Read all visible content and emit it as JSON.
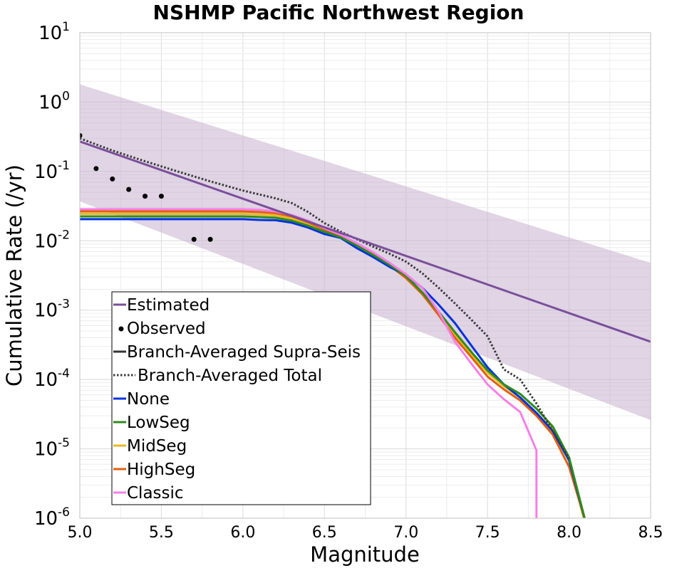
{
  "chart_data": {
    "type": "line",
    "title": "NSHMP Pacific Northwest Region",
    "xlabel": "Magnitude",
    "ylabel": "Cumulative Rate (/yr)",
    "xlim": [
      5.0,
      8.5
    ],
    "ylim": [
      1e-06,
      10
    ],
    "yscale": "log",
    "grid": true,
    "legend_placement": "lower-left",
    "xticks": [
      "5.0",
      "5.5",
      "6.0",
      "6.5",
      "7.0",
      "7.5",
      "8.0",
      "8.5"
    ],
    "yticks": [
      {
        "base": "10",
        "exp": "1",
        "value": 10
      },
      {
        "base": "10",
        "exp": "0",
        "value": 1
      },
      {
        "base": "10",
        "exp": "-1",
        "value": 0.1
      },
      {
        "base": "10",
        "exp": "-2",
        "value": 0.01
      },
      {
        "base": "10",
        "exp": "-3",
        "value": 0.001
      },
      {
        "base": "10",
        "exp": "-4",
        "value": 0.0001
      },
      {
        "base": "10",
        "exp": "-5",
        "value": 1e-05
      },
      {
        "base": "10",
        "exp": "-6",
        "value": 1e-06
      }
    ],
    "band": {
      "color": "#c7b0d0",
      "opacity": 0.55,
      "x": [
        5.0,
        8.5
      ],
      "upper": [
        1.8,
        0.0048
      ],
      "lower": [
        0.037,
        2.6e-05
      ]
    },
    "series": [
      {
        "name": "Estimated",
        "style": "line",
        "color": "#7a4f9a",
        "x": [
          5.0,
          8.5
        ],
        "y": [
          0.27,
          0.00035
        ]
      },
      {
        "name": "Observed",
        "style": "points",
        "color": "#000000",
        "x": [
          5.0,
          5.1,
          5.2,
          5.3,
          5.4,
          5.5,
          5.7,
          5.8
        ],
        "y": [
          0.33,
          0.11,
          0.078,
          0.055,
          0.044,
          0.044,
          0.0105,
          0.0105
        ]
      },
      {
        "name": "Branch-Averaged Supra-Seis",
        "style": "line",
        "color": "#333333",
        "x": [],
        "y": []
      },
      {
        "name": "Branch-Averaged Total",
        "style": "dotted",
        "color": "#3a3a3a",
        "x": [
          5.0,
          5.2,
          5.4,
          5.6,
          5.8,
          6.0,
          6.2,
          6.3,
          6.4,
          6.5,
          6.6,
          6.7,
          6.8,
          6.9,
          7.0,
          7.1,
          7.2,
          7.3,
          7.4,
          7.5,
          7.6,
          7.7,
          7.8,
          7.9,
          8.0
        ],
        "y": [
          0.3,
          0.2,
          0.14,
          0.1,
          0.072,
          0.053,
          0.041,
          0.035,
          0.026,
          0.018,
          0.0135,
          0.0105,
          0.0082,
          0.0065,
          0.005,
          0.0034,
          0.0021,
          0.00125,
          0.00073,
          0.00042,
          0.00014,
          0.0001,
          4.5e-05,
          1.8e-05,
          7.2e-06
        ]
      },
      {
        "name": "None",
        "style": "line",
        "color": "#0033dd",
        "x": [
          5.0,
          5.1,
          5.2,
          5.3,
          5.4,
          5.5,
          5.6,
          5.7,
          5.8,
          5.9,
          6.0,
          6.1,
          6.2,
          6.3,
          6.4,
          6.5,
          6.6,
          6.7,
          6.8,
          6.9,
          7.0,
          7.1,
          7.2,
          7.3,
          7.4,
          7.5,
          7.6,
          7.7,
          7.8,
          7.9,
          8.0,
          8.1
        ],
        "y": [
          0.0205,
          0.0205,
          0.0205,
          0.0205,
          0.0205,
          0.0205,
          0.0205,
          0.0205,
          0.0205,
          0.0205,
          0.0205,
          0.02,
          0.0198,
          0.0182,
          0.0155,
          0.0125,
          0.011,
          0.0078,
          0.0058,
          0.0042,
          0.0032,
          0.0021,
          0.0012,
          0.00065,
          0.00031,
          0.00015,
          8.5e-05,
          5.5e-05,
          3.3e-05,
          1.8e-05,
          6.8e-06,
          9e-07
        ]
      },
      {
        "name": "LowSeg",
        "style": "line",
        "color": "#2e8b1e",
        "x": [
          5.0,
          5.1,
          5.2,
          5.3,
          5.4,
          5.5,
          5.6,
          5.7,
          5.8,
          5.9,
          6.0,
          6.1,
          6.2,
          6.3,
          6.4,
          6.5,
          6.6,
          6.7,
          6.8,
          6.9,
          7.0,
          7.1,
          7.2,
          7.3,
          7.4,
          7.5,
          7.6,
          7.7,
          7.8,
          7.9,
          8.0,
          8.1
        ],
        "y": [
          0.0225,
          0.0225,
          0.0225,
          0.0225,
          0.0225,
          0.0225,
          0.0225,
          0.0225,
          0.0225,
          0.0225,
          0.0225,
          0.022,
          0.0215,
          0.0195,
          0.0165,
          0.0135,
          0.0112,
          0.0085,
          0.0062,
          0.0045,
          0.0031,
          0.0018,
          0.00095,
          0.00048,
          0.00025,
          0.000135,
          8.5e-05,
          6.2e-05,
          3.8e-05,
          2.1e-05,
          7.5e-06,
          9e-07
        ]
      },
      {
        "name": "MidSeg",
        "style": "line",
        "color": "#e8b923",
        "x": [
          5.0,
          5.1,
          5.2,
          5.3,
          5.4,
          5.5,
          5.6,
          5.7,
          5.8,
          5.9,
          6.0,
          6.1,
          6.2,
          6.3,
          6.4,
          6.5,
          6.6,
          6.7,
          6.8,
          6.9,
          7.0,
          7.1,
          7.2,
          7.3,
          7.4,
          7.5,
          7.6,
          7.7,
          7.8,
          7.9,
          8.0,
          8.1
        ],
        "y": [
          0.0245,
          0.0245,
          0.0245,
          0.0245,
          0.0245,
          0.0245,
          0.0245,
          0.0245,
          0.0245,
          0.0245,
          0.0245,
          0.024,
          0.0232,
          0.021,
          0.0175,
          0.014,
          0.0115,
          0.0087,
          0.0064,
          0.0045,
          0.003,
          0.0018,
          0.00092,
          0.00045,
          0.00023,
          0.000125,
          8e-05,
          5.5e-05,
          3.3e-05,
          1.9e-05,
          6.8e-06,
          8e-07
        ]
      },
      {
        "name": "HighSeg",
        "style": "line",
        "color": "#e35f10",
        "x": [
          5.0,
          5.1,
          5.2,
          5.3,
          5.4,
          5.5,
          5.6,
          5.7,
          5.8,
          5.9,
          6.0,
          6.1,
          6.2,
          6.3,
          6.4,
          6.5,
          6.6,
          6.7,
          6.8,
          6.9,
          7.0,
          7.1,
          7.2,
          7.3,
          7.4,
          7.5,
          7.6,
          7.7,
          7.8,
          7.9,
          8.0,
          8.1
        ],
        "y": [
          0.0265,
          0.0265,
          0.0265,
          0.0265,
          0.0265,
          0.0265,
          0.0265,
          0.0265,
          0.0265,
          0.0265,
          0.0265,
          0.026,
          0.025,
          0.0225,
          0.0185,
          0.0145,
          0.0118,
          0.0088,
          0.0064,
          0.0044,
          0.0029,
          0.0017,
          0.00085,
          0.0004,
          0.00021,
          0.00011,
          7.2e-05,
          5e-05,
          3e-05,
          1.6e-05,
          5.5e-06,
          9e-07
        ]
      },
      {
        "name": "Classic",
        "style": "line",
        "color": "#f57fe8",
        "x": [
          5.0,
          5.1,
          5.2,
          5.3,
          5.4,
          5.5,
          5.6,
          5.7,
          5.8,
          5.9,
          6.0,
          6.1,
          6.2,
          6.3,
          6.4,
          6.5,
          6.6,
          6.7,
          6.8,
          6.9,
          7.0,
          7.1,
          7.2,
          7.3,
          7.4,
          7.5,
          7.6,
          7.7,
          7.8,
          7.8
        ],
        "y": [
          0.0285,
          0.0285,
          0.0285,
          0.0285,
          0.0285,
          0.0285,
          0.0285,
          0.0285,
          0.0285,
          0.0285,
          0.0285,
          0.028,
          0.0265,
          0.0235,
          0.0195,
          0.0152,
          0.0122,
          0.0092,
          0.0068,
          0.0048,
          0.0033,
          0.0021,
          0.00095,
          0.00035,
          0.00017,
          8.5e-05,
          5.2e-05,
          3.4e-05,
          9.5e-06,
          9e-07
        ]
      }
    ]
  }
}
